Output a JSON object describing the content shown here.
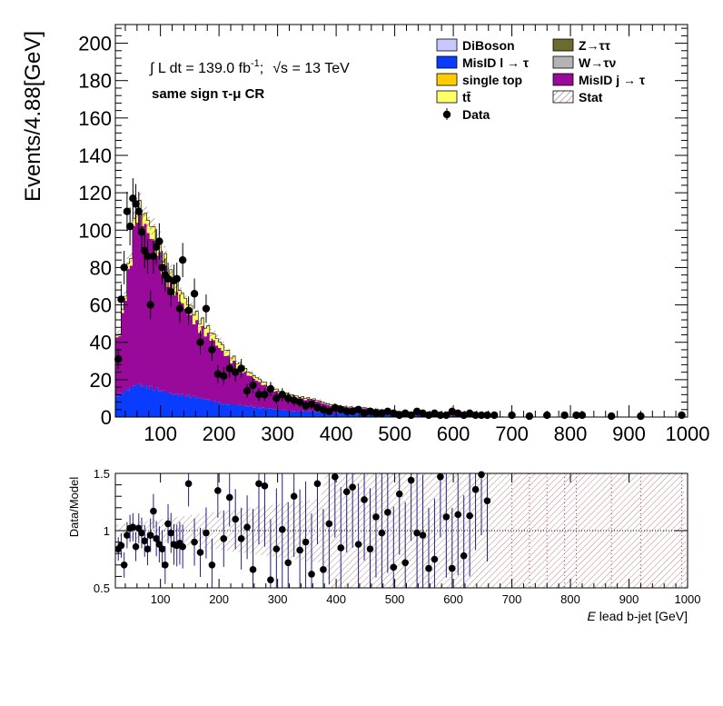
{
  "chart_data": [
    {
      "type": "area",
      "panel": "main",
      "ylabel": "Events/4.88[GeV]",
      "xlim": [
        23,
        1000
      ],
      "ylim": [
        0,
        210
      ],
      "xticks": [
        "100",
        "200",
        "300",
        "400",
        "500",
        "600",
        "700",
        "800",
        "900",
        "1000"
      ],
      "yticks": [
        "0",
        "20",
        "40",
        "60",
        "80",
        "100",
        "120",
        "140",
        "160",
        "180",
        "200"
      ],
      "annotations": {
        "lumi_prefix": "∫ L dt = 139.0 fb",
        "lumi_exp": "-1",
        "lumi_sep": ";",
        "sqrt_s": "√s = 13 TeV",
        "region": "same sign  τ-μ CR"
      },
      "legend_position": "top-right",
      "legend": [
        {
          "label": "DiBoson",
          "color": "#c8c8ff",
          "kind": "box"
        },
        {
          "label": "Z→ττ",
          "color": "#6b6b2e",
          "kind": "box"
        },
        {
          "label": "MisID l  →  τ",
          "color": "#0a3cff",
          "kind": "box"
        },
        {
          "label": "W→τν",
          "color": "#b4b4b4",
          "kind": "box"
        },
        {
          "label": "single top",
          "color": "#ffcc00",
          "kind": "box"
        },
        {
          "label": "MisID j  →  τ",
          "color": "#9a0a9a",
          "kind": "box"
        },
        {
          "label": "tt̄",
          "color": "#ffff66",
          "kind": "box"
        },
        {
          "label": "Stat",
          "color": "#808080",
          "kind": "hatch"
        },
        {
          "label": "Data",
          "color": "#000000",
          "kind": "marker"
        }
      ],
      "series": [
        {
          "name": "MisID l  →  τ",
          "color": "#0a3cff",
          "x": [
            30,
            60,
            90,
            120,
            150,
            180,
            210,
            240,
            270,
            300,
            330,
            360,
            390,
            420,
            450,
            480,
            520,
            560,
            600,
            640
          ],
          "values": [
            12,
            17,
            15,
            12,
            11,
            9,
            7,
            6,
            5,
            4,
            3,
            3,
            2,
            2,
            1.5,
            1.5,
            1,
            1,
            0.5,
            0.5
          ]
        },
        {
          "name": "MisID j  →  τ",
          "color": "#9a0a9a",
          "x": [
            30,
            60,
            90,
            120,
            150,
            180,
            210,
            240,
            270,
            300,
            330,
            360,
            390,
            420,
            450,
            480,
            520,
            560,
            600,
            640
          ],
          "values": [
            30,
            90,
            75,
            55,
            42,
            34,
            26,
            18,
            13,
            9,
            7,
            6,
            4,
            3,
            3,
            2,
            1.5,
            1,
            1,
            0.5
          ]
        },
        {
          "name": "tt̄",
          "color": "#ffff66",
          "x": [
            30,
            60,
            90,
            120,
            150,
            180,
            210,
            240,
            270,
            300,
            330,
            360,
            390,
            420,
            450,
            480,
            520,
            560,
            600,
            640
          ],
          "values": [
            1,
            5,
            7,
            6,
            5,
            4,
            3,
            2,
            1.5,
            1,
            1,
            0.5,
            0.5,
            0.3,
            0.3,
            0.2,
            0.2,
            0.1,
            0.1,
            0.1
          ]
        }
      ],
      "data": {
        "name": "Data",
        "x": [
          28,
          33,
          38,
          43,
          48,
          53,
          58,
          63,
          68,
          73,
          78,
          83,
          88,
          93,
          98,
          103,
          108,
          113,
          118,
          123,
          128,
          133,
          138,
          148,
          158,
          168,
          178,
          188,
          198,
          208,
          218,
          228,
          238,
          248,
          258,
          268,
          278,
          288,
          298,
          308,
          318,
          328,
          338,
          348,
          358,
          368,
          378,
          388,
          398,
          408,
          418,
          428,
          438,
          448,
          458,
          468,
          478,
          488,
          498,
          508,
          518,
          528,
          538,
          548,
          558,
          568,
          578,
          588,
          598,
          608,
          618,
          628,
          638,
          648,
          658,
          670,
          700,
          730,
          760,
          790,
          810,
          820,
          870,
          920,
          990
        ],
        "y": [
          31,
          63,
          80,
          110,
          102,
          117,
          114,
          110,
          99,
          89,
          86,
          60,
          86,
          91,
          94,
          80,
          76,
          74,
          67,
          73,
          74,
          58,
          84,
          57,
          66,
          40,
          58,
          36,
          23,
          22,
          26,
          24,
          26,
          14,
          17,
          12,
          12,
          15,
          10,
          12,
          10,
          9,
          8,
          6,
          7,
          5,
          4,
          3,
          5,
          4,
          3,
          3,
          4,
          2,
          3,
          2,
          2,
          3,
          2,
          1,
          2,
          1,
          3,
          2,
          1,
          2,
          1,
          1,
          3,
          2,
          1,
          2,
          1,
          1,
          1,
          1,
          1,
          0.5,
          1,
          1,
          1,
          1,
          0.5,
          0.5,
          1
        ]
      }
    },
    {
      "type": "scatter",
      "panel": "ratio",
      "ylabel": "Data/Model",
      "xlabel_italic": "E",
      "xlabel_rest": " lead b-jet [GeV]",
      "xlim": [
        23,
        1000
      ],
      "ylim": [
        0.5,
        1.5
      ],
      "xticks": [
        "100",
        "200",
        "300",
        "400",
        "500",
        "600",
        "700",
        "800",
        "900",
        "1000"
      ],
      "yticks": [
        "0.5",
        "1",
        "1.5"
      ],
      "x": [
        28,
        33,
        38,
        43,
        48,
        53,
        58,
        63,
        68,
        73,
        78,
        83,
        88,
        93,
        98,
        103,
        108,
        113,
        118,
        123,
        128,
        133,
        138,
        148,
        158,
        168,
        178,
        188,
        198,
        208,
        218,
        228,
        238,
        248,
        258,
        268,
        278,
        288,
        298,
        308,
        318,
        328,
        338,
        348,
        358,
        368,
        378,
        388,
        398,
        408,
        418,
        428,
        438,
        448,
        458,
        468,
        478,
        488,
        498,
        508,
        518,
        528,
        538,
        548,
        558,
        568,
        578,
        588,
        598,
        608,
        618,
        628,
        638,
        648,
        658
      ],
      "y": [
        0.84,
        0.87,
        0.7,
        0.96,
        1.02,
        1.03,
        0.86,
        1.02,
        0.98,
        0.91,
        0.84,
        0.96,
        1.17,
        0.93,
        0.88,
        0.84,
        0.7,
        1.06,
        0.98,
        0.88,
        0.87,
        0.89,
        0.86,
        1.41,
        0.9,
        0.81,
        0.98,
        0.7,
        1.35,
        0.93,
        1.29,
        1.1,
        0.93,
        1.03,
        0.66,
        1.41,
        1.39,
        0.57,
        0.84,
        1.01,
        0.72,
        1.3,
        0.83,
        0.9,
        0.62,
        1.41,
        0.66,
        1.06,
        1.47,
        0.85,
        1.34,
        1.38,
        0.88,
        1.27,
        0.84,
        1.12,
        0.98,
        1.16,
        0.68,
        1.32,
        0.72,
        1.44,
        0.98,
        0.96,
        0.67,
        0.75,
        1.47,
        1.12,
        0.67,
        1.14,
        0.78,
        1.13,
        1.36,
        1.49,
        1.26
      ]
    }
  ]
}
